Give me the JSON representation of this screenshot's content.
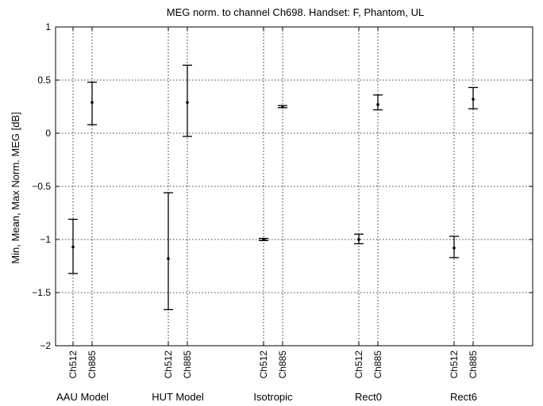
{
  "chart_data": {
    "type": "errorbar",
    "title": "MEG norm. to channel Ch698.  Handset: F, Phantom, UL",
    "ylabel": "Min, Mean, Max Norm. MEG [dB]",
    "xlabel": "",
    "ylim": [
      -2,
      1
    ],
    "yticks": [
      -2,
      -1.5,
      -1,
      -0.5,
      0,
      0.5,
      1
    ],
    "ytick_labels": [
      "−2",
      "−1.5",
      "−1",
      "−0.5",
      "0",
      "0.5",
      "1"
    ],
    "grid": true,
    "groups": [
      {
        "label": "AAU Model",
        "items": [
          {
            "channel": "Ch512",
            "min": -1.32,
            "mean": -1.07,
            "max": -0.81
          },
          {
            "channel": "Ch885",
            "min": 0.08,
            "mean": 0.29,
            "max": 0.48
          }
        ]
      },
      {
        "label": "HUT Model",
        "items": [
          {
            "channel": "Ch512",
            "min": -1.66,
            "mean": -1.18,
            "max": -0.56
          },
          {
            "channel": "Ch885",
            "min": -0.03,
            "mean": 0.29,
            "max": 0.64
          }
        ]
      },
      {
        "label": "Isotropic",
        "items": [
          {
            "channel": "Ch512",
            "min": -1.01,
            "mean": -1.0,
            "max": -0.99
          },
          {
            "channel": "Ch885",
            "min": 0.24,
            "mean": 0.25,
            "max": 0.26
          }
        ]
      },
      {
        "label": "Rect0",
        "items": [
          {
            "channel": "Ch512",
            "min": -1.04,
            "mean": -1.0,
            "max": -0.95
          },
          {
            "channel": "Ch885",
            "min": 0.22,
            "mean": 0.27,
            "max": 0.36
          }
        ]
      },
      {
        "label": "Rect6",
        "items": [
          {
            "channel": "Ch512",
            "min": -1.17,
            "mean": -1.08,
            "max": -0.97
          },
          {
            "channel": "Ch885",
            "min": 0.23,
            "mean": 0.32,
            "max": 0.43
          }
        ]
      }
    ]
  }
}
